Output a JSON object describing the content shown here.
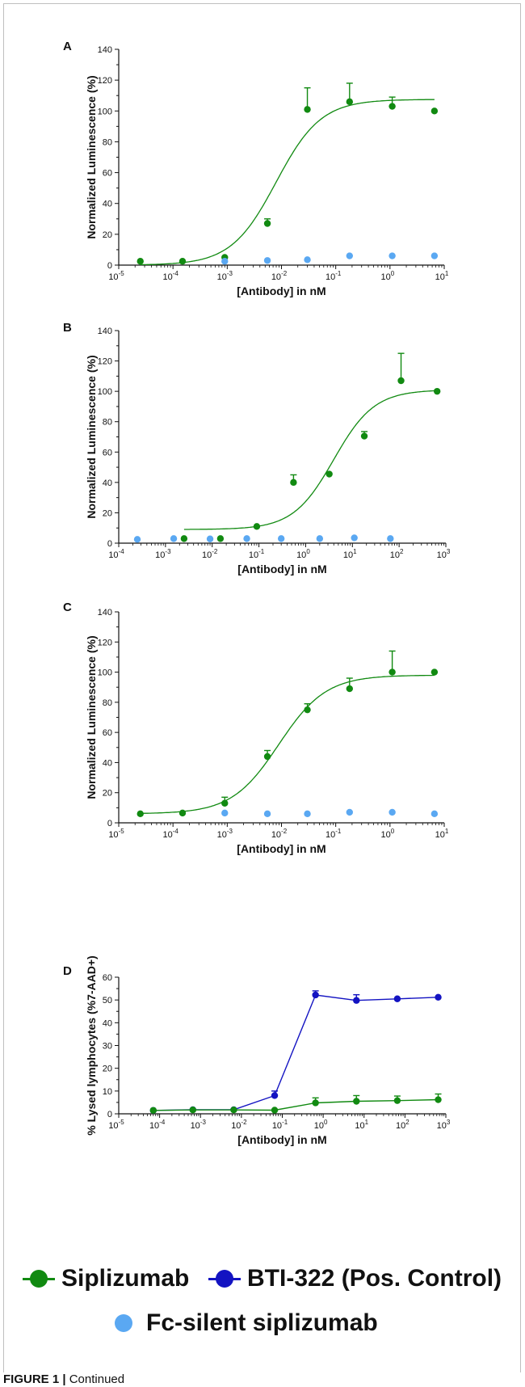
{
  "colors": {
    "green": "#118a11",
    "blue": "#1313c2",
    "lightblue": "#5aa8f2",
    "axis": "#111111"
  },
  "legend": {
    "siplizumab": "Siplizumab",
    "bti322": "BTI-322 (Pos. Control)",
    "fc_silent": "Fc-silent siplizumab"
  },
  "caption": {
    "label": "FIGURE 1 |",
    "text": " Continued"
  },
  "chart_data": [
    {
      "panel": "A",
      "type": "scatter",
      "xscale": "log",
      "xlim": [
        1e-05,
        10
      ],
      "ylim": [
        0,
        140
      ],
      "yticks": [
        0,
        20,
        40,
        60,
        80,
        100,
        120,
        140
      ],
      "xtick_exponents": [
        -5,
        -4,
        -3,
        -2,
        -1,
        0,
        1
      ],
      "xlabel": "[Antibody] in nM",
      "ylabel": "Normalized Luminescence (%)",
      "series": [
        {
          "color_key": "green",
          "points": [
            [
              2.5e-05,
              2.5
            ],
            [
              0.00015,
              2.5
            ],
            [
              0.0009,
              5
            ],
            [
              0.0055,
              27
            ],
            [
              0.03,
              101
            ],
            [
              0.18,
              106
            ],
            [
              1.1,
              103
            ],
            [
              6.6,
              100
            ]
          ],
          "err_up": [
            0,
            0,
            0,
            3,
            14,
            12,
            6,
            0
          ],
          "fit": {
            "bottom": 0,
            "top": 107.5,
            "log_ec50": -2.1,
            "hill": 1.05
          }
        },
        {
          "color_key": "lightblue",
          "points": [
            [
              0.0009,
              2.5
            ],
            [
              0.0055,
              3
            ],
            [
              0.03,
              3.5
            ],
            [
              0.18,
              6
            ],
            [
              1.1,
              6
            ],
            [
              6.6,
              6
            ]
          ]
        }
      ]
    },
    {
      "panel": "B",
      "type": "scatter",
      "xscale": "log",
      "xlim": [
        0.0001,
        1000
      ],
      "ylim": [
        0,
        140
      ],
      "yticks": [
        0,
        20,
        40,
        60,
        80,
        100,
        120,
        140
      ],
      "xtick_exponents": [
        -4,
        -3,
        -2,
        -1,
        0,
        1,
        2,
        3
      ],
      "xlabel": "[Antibody] in nM",
      "ylabel": "Normalized Luminescence (%)",
      "series": [
        {
          "color_key": "green",
          "points": [
            [
              0.0025,
              3
            ],
            [
              0.015,
              3
            ],
            [
              0.09,
              11
            ],
            [
              0.55,
              40
            ],
            [
              3.2,
              45.5
            ],
            [
              18,
              70.5
            ],
            [
              110,
              107
            ],
            [
              650,
              100
            ]
          ],
          "err_up": [
            0,
            0,
            0,
            5,
            0,
            3,
            18,
            0
          ],
          "fit": {
            "bottom": 9,
            "top": 101,
            "log_ec50": 0.6,
            "hill": 1.0
          }
        },
        {
          "color_key": "lightblue",
          "points": [
            [
              0.00025,
              2.5
            ],
            [
              0.0015,
              3
            ],
            [
              0.009,
              2.8
            ],
            [
              0.055,
              3
            ],
            [
              0.3,
              3
            ],
            [
              2,
              3
            ],
            [
              11,
              3.5
            ],
            [
              65,
              3
            ]
          ]
        }
      ]
    },
    {
      "panel": "C",
      "type": "scatter",
      "xscale": "log",
      "xlim": [
        1e-05,
        10
      ],
      "ylim": [
        0,
        140
      ],
      "yticks": [
        0,
        20,
        40,
        60,
        80,
        100,
        120,
        140
      ],
      "xtick_exponents": [
        -5,
        -4,
        -3,
        -2,
        -1,
        0,
        1
      ],
      "xlabel": "[Antibody] in nM",
      "ylabel": "Normalized Luminescence (%)",
      "series": [
        {
          "color_key": "green",
          "points": [
            [
              2.5e-05,
              6
            ],
            [
              0.00015,
              6.5
            ],
            [
              0.0009,
              13
            ],
            [
              0.0055,
              44
            ],
            [
              0.03,
              75
            ],
            [
              0.18,
              89
            ],
            [
              1.1,
              100
            ],
            [
              6.6,
              100
            ]
          ],
          "err_up": [
            0,
            0,
            4,
            4,
            4,
            7,
            14,
            0
          ],
          "fit": {
            "bottom": 6,
            "top": 98,
            "log_ec50": -2.05,
            "hill": 1.0
          }
        },
        {
          "color_key": "lightblue",
          "points": [
            [
              0.0009,
              6.5
            ],
            [
              0.0055,
              6
            ],
            [
              0.03,
              6
            ],
            [
              0.18,
              7
            ],
            [
              1.1,
              7
            ],
            [
              6.6,
              6
            ]
          ]
        }
      ]
    },
    {
      "panel": "D",
      "type": "line",
      "xscale": "log",
      "xlim": [
        1e-05,
        1000
      ],
      "ylim": [
        0,
        60
      ],
      "yticks": [
        0,
        10,
        20,
        30,
        40,
        50,
        60
      ],
      "xtick_exponents": [
        -5,
        -4,
        -3,
        -2,
        -1,
        0,
        1,
        2,
        3
      ],
      "xlabel": "[Antibody] in nM",
      "ylabel": "% Lysed lymphocytes (%7-AAD+)",
      "series": [
        {
          "color_key": "blue",
          "connect": true,
          "points": [
            [
              7e-05,
              1.5
            ],
            [
              0.00065,
              1.8
            ],
            [
              0.0065,
              1.8
            ],
            [
              0.065,
              8
            ],
            [
              0.65,
              52.2
            ],
            [
              6.5,
              49.8
            ],
            [
              65,
              50.5
            ],
            [
              650,
              51.2
            ]
          ],
          "err_up": [
            0,
            0,
            0,
            2,
            1.8,
            2.5,
            0,
            0
          ]
        },
        {
          "color_key": "green",
          "connect": true,
          "points": [
            [
              7e-05,
              1.5
            ],
            [
              0.00065,
              1.7
            ],
            [
              0.0065,
              1.7
            ],
            [
              0.065,
              1.6
            ],
            [
              0.65,
              4.8
            ],
            [
              6.5,
              5.5
            ],
            [
              65,
              5.8
            ],
            [
              650,
              6.2
            ]
          ],
          "err_up": [
            0,
            0,
            0,
            0,
            2.2,
            2.5,
            2,
            2.5
          ]
        }
      ]
    }
  ]
}
